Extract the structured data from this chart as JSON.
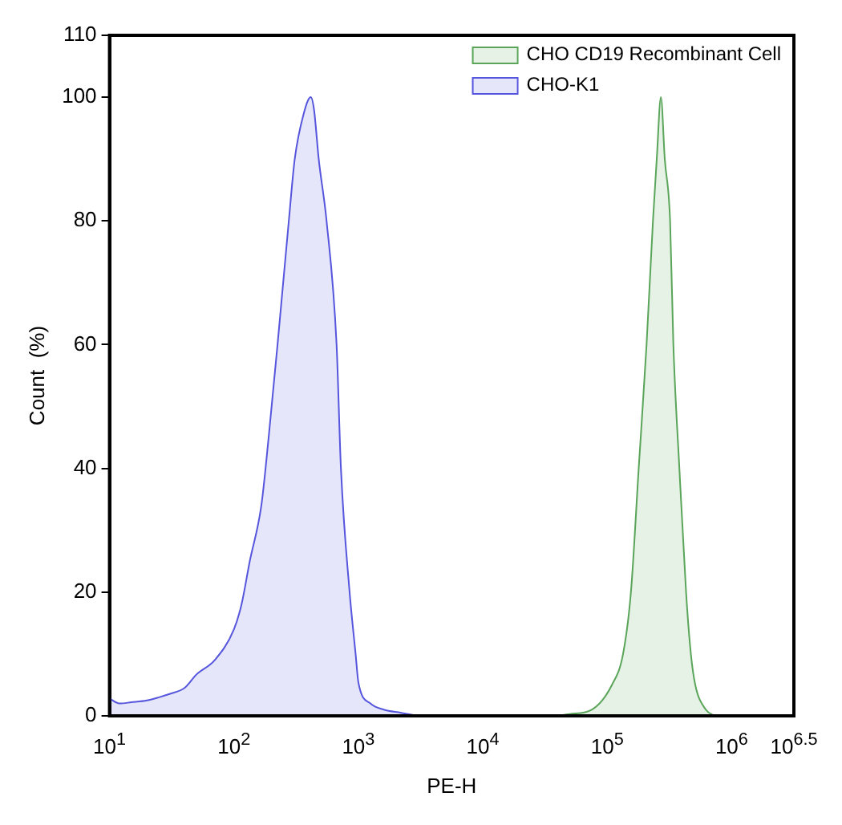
{
  "chart_data": {
    "type": "area",
    "xlabel": "PE-H",
    "ylabel": "Count  (%)",
    "log": "x",
    "xlim": [
      10,
      3162278
    ],
    "xticks": [
      {
        "value": 10,
        "label": "10$^{1}$"
      },
      {
        "value": 100,
        "label": "10$^{2}$"
      },
      {
        "value": 1000,
        "label": "10$^{3}$"
      },
      {
        "value": 10000,
        "label": "10$^{4}$"
      },
      {
        "value": 100000,
        "label": "10$^{5}$"
      },
      {
        "value": 1000000,
        "label": "10$^{6}$"
      },
      {
        "value": 3162278,
        "label": "10$^{6.5}$"
      }
    ],
    "ylim": [
      0,
      110
    ],
    "yticks": [
      0,
      20,
      40,
      60,
      80,
      100,
      110
    ],
    "grid": false,
    "legend": "top right",
    "series": [
      {
        "name": "CHO CD19 Recombinant Cell",
        "color": "#5aa55a",
        "x": [
          40000,
          50000,
          75000,
          109000,
          134000,
          155000,
          179000,
          207000,
          233000,
          250000,
          270000,
          290000,
          320000,
          340000,
          380000,
          430000,
          470000,
          510000,
          620000,
          730000
        ],
        "values": [
          0,
          0.3,
          1,
          5,
          10,
          20,
          40,
          60,
          80,
          90,
          100,
          90,
          80,
          60,
          40,
          20,
          10,
          5,
          1,
          0
        ]
      },
      {
        "name": "CHO-K1",
        "color": "#5555dd",
        "x": [
          10,
          12,
          15,
          20,
          25,
          30,
          40,
          50,
          70,
          100,
          115,
          134,
          166,
          190,
          224,
          276,
          308,
          360,
          414,
          440,
          480,
          555,
          668,
          724,
          850,
          950,
          1000,
          1250,
          1600,
          2200,
          3000
        ],
        "values": [
          2.8,
          2,
          2.2,
          2.5,
          3,
          3.5,
          4.5,
          6.7,
          9,
          14,
          18,
          25,
          34,
          45,
          60,
          80,
          90,
          97,
          100,
          98,
          90,
          80,
          60,
          40,
          20,
          10,
          5.4,
          2,
          1,
          0.5,
          0
        ]
      }
    ]
  }
}
